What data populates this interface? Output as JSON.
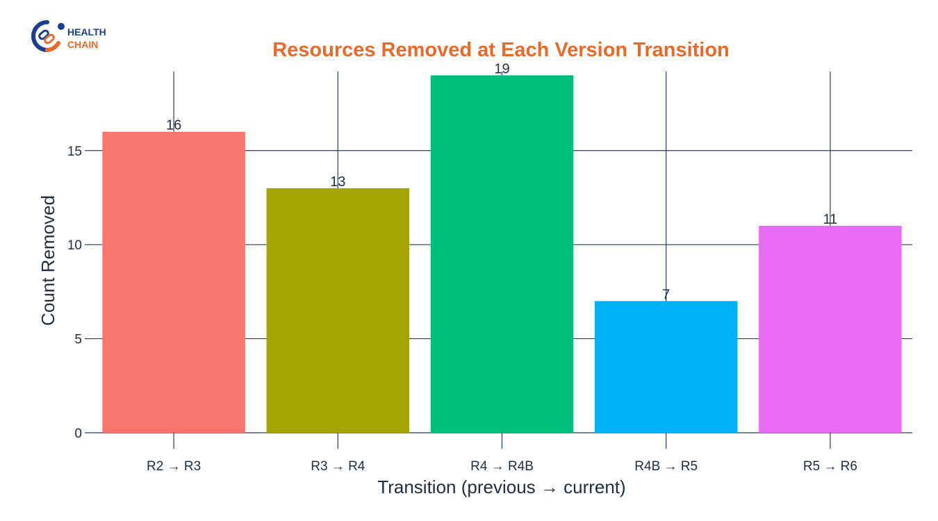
{
  "logo": {
    "line1": "HEALTH",
    "line2": "CHAIN",
    "brand_blue": "#1a3f8f",
    "brand_orange": "#e8692a"
  },
  "chart_data": {
    "type": "bar",
    "title": "Resources Removed at Each Version Transition",
    "title_color": "#e8692a",
    "xlabel": "Transition (previous → current)",
    "ylabel": "Count Removed",
    "categories": [
      "R2 → R3",
      "R3 → R4",
      "R4 → R4B",
      "R4B → R5",
      "R5 → R6"
    ],
    "values": [
      16,
      13,
      19,
      7,
      11
    ],
    "colors": [
      "#f8766d",
      "#a3a500",
      "#00bf7d",
      "#00b0f6",
      "#e76bf3"
    ],
    "ylim": [
      0,
      19.2
    ],
    "yticks": [
      0,
      5,
      10,
      15
    ],
    "grid": true,
    "grid_color": "#2b3a55",
    "legend": "none"
  }
}
